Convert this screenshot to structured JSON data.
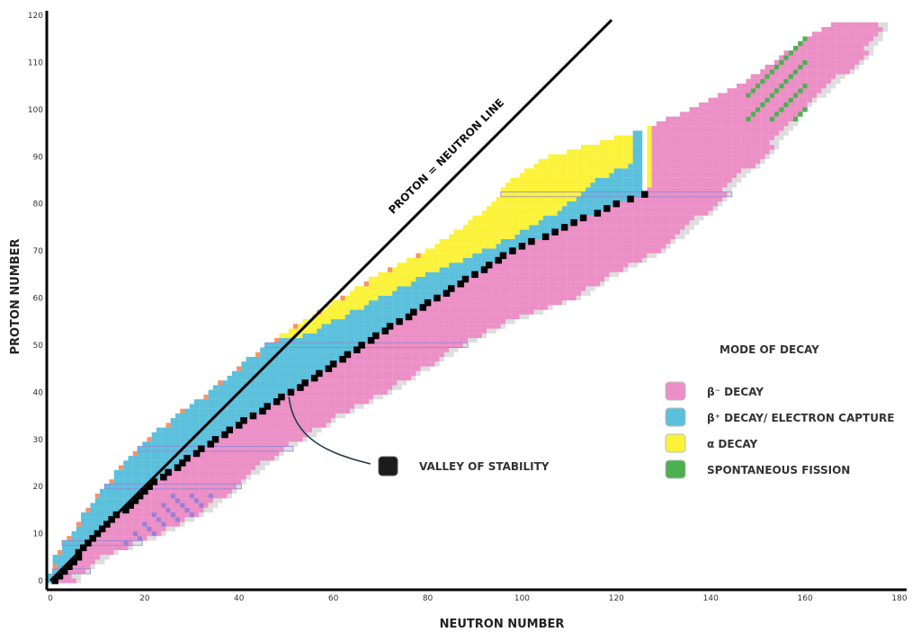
{
  "chart_data": {
    "type": "heatmap",
    "title": "",
    "xlabel": "NEUTRON NUMBER",
    "ylabel": "PROTON NUMBER",
    "xlim": [
      0,
      180
    ],
    "ylim": [
      0,
      120
    ],
    "xticks": [
      0,
      20,
      40,
      60,
      80,
      100,
      120,
      140,
      160,
      180
    ],
    "yticks": [
      0,
      10,
      20,
      30,
      40,
      50,
      60,
      70,
      80,
      90,
      100,
      110,
      120
    ],
    "grid": false,
    "legend_title": "MODE OF DECAY",
    "legend_position": "right",
    "legend": [
      {
        "key": "beta_minus",
        "label": "β⁻ DECAY",
        "color": "#ec8fc6"
      },
      {
        "key": "beta_plus",
        "label": "β⁺ DECAY/ ELECTRON CAPTURE",
        "color": "#5bc0dc"
      },
      {
        "key": "alpha",
        "label": "α DECAY",
        "color": "#fbf23a"
      },
      {
        "key": "fission",
        "label": "SPONTANEOUS FISSION",
        "color": "#4caf50"
      }
    ],
    "stable_label": "VALLEY OF STABILITY",
    "line_label": "PROTON = NEUTRON LINE",
    "proton_neutron_line": {
      "x": [
        0,
        119
      ],
      "y": [
        0,
        119
      ]
    },
    "annotation_point": {
      "x": 50,
      "y": 39
    },
    "magic_numbers": [
      2,
      8,
      20,
      28,
      50,
      82,
      126
    ],
    "colors": {
      "stable": "#000000",
      "beta_minus": "#ec8fc6",
      "beta_plus": "#5bc0dc",
      "alpha": "#fbf23a",
      "fission": "#4caf50",
      "unknown": "#dddddd",
      "proton_emission": "#f4946a",
      "neutron_emission": "#9b7fd4"
    },
    "stability_line": [
      {
        "z": 0,
        "n": 1
      },
      {
        "z": 10,
        "n": 10
      },
      {
        "z": 20,
        "n": 21
      },
      {
        "z": 30,
        "n": 35
      },
      {
        "z": 40,
        "n": 51
      },
      {
        "z": 50,
        "n": 66
      },
      {
        "z": 60,
        "n": 82
      },
      {
        "z": 70,
        "n": 98
      },
      {
        "z": 80,
        "n": 120
      },
      {
        "z": 82,
        "n": 126
      }
    ],
    "chart_rows": [
      {
        "z": 1,
        "nmin": 0,
        "nmax": 6
      },
      {
        "z": 2,
        "nmin": 1,
        "nmax": 8
      },
      {
        "z": 5,
        "nmin": 1,
        "nmax": 12
      },
      {
        "z": 10,
        "nmin": 5,
        "nmax": 24
      },
      {
        "z": 15,
        "nmin": 8,
        "nmax": 34
      },
      {
        "z": 20,
        "nmin": 12,
        "nmax": 40
      },
      {
        "z": 25,
        "nmin": 16,
        "nmax": 46
      },
      {
        "z": 30,
        "nmin": 21,
        "nmax": 54
      },
      {
        "z": 35,
        "nmin": 27,
        "nmax": 62
      },
      {
        "z": 40,
        "nmin": 34,
        "nmax": 72
      },
      {
        "z": 45,
        "nmin": 40,
        "nmax": 80
      },
      {
        "z": 50,
        "nmin": 46,
        "nmax": 88
      },
      {
        "z": 55,
        "nmin": 54,
        "nmax": 98
      },
      {
        "z": 60,
        "nmin": 62,
        "nmax": 112
      },
      {
        "z": 65,
        "nmin": 70,
        "nmax": 120
      },
      {
        "z": 70,
        "nmin": 80,
        "nmax": 130
      },
      {
        "z": 75,
        "nmin": 88,
        "nmax": 136
      },
      {
        "z": 80,
        "nmin": 94,
        "nmax": 142
      },
      {
        "z": 85,
        "nmin": 98,
        "nmax": 146
      },
      {
        "z": 90,
        "nmin": 106,
        "nmax": 152
      },
      {
        "z": 95,
        "nmin": 124,
        "nmax": 156
      },
      {
        "z": 100,
        "nmin": 136,
        "nmax": 160
      },
      {
        "z": 105,
        "nmin": 146,
        "nmax": 166
      },
      {
        "z": 110,
        "nmin": 154,
        "nmax": 172
      },
      {
        "z": 115,
        "nmin": 160,
        "nmax": 176
      },
      {
        "z": 118,
        "nmin": 166,
        "nmax": 177
      }
    ],
    "alpha_region": {
      "zmin": 52,
      "nmin_offset": -2
    },
    "fission_region": {
      "zmin": 98,
      "nmin": 148,
      "nmax": 160
    }
  }
}
